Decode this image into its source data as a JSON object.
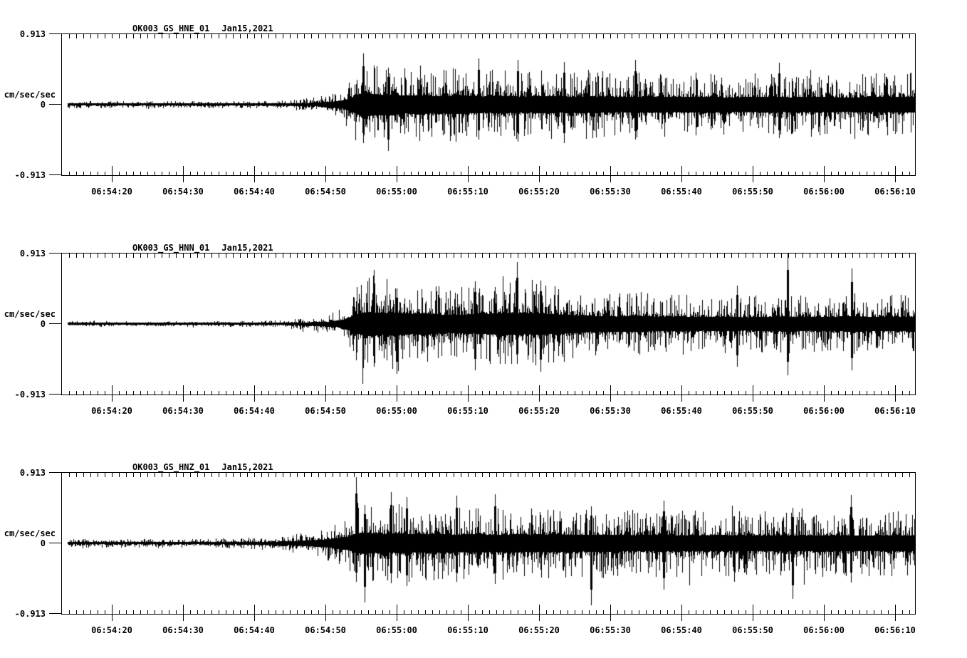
{
  "figure": {
    "background": "#ffffff",
    "ink": "#000000",
    "units_label": "cm/sec/sec"
  },
  "chart_data": [
    {
      "type": "line",
      "subtype": "seismogram",
      "station": "OK003_GS_HNE_01",
      "date": "Jan15,2021",
      "ylabel": "cm/sec/sec",
      "ylim": [
        -0.913,
        0.913
      ],
      "ytick_labels": [
        "0.913",
        "0",
        "-0.913"
      ],
      "x_start": "06:54:13",
      "x_end": "06:56:13",
      "xtick_labels": [
        "06:54:20",
        "06:54:30",
        "06:54:40",
        "06:54:50",
        "06:55:00",
        "06:55:10",
        "06:55:20",
        "06:55:30",
        "06:55:40",
        "06:55:50",
        "06:56:00",
        "06:56:10"
      ],
      "minor_tick_sec": 1,
      "major_tick_sec": 10,
      "first_major_offset_sec": 6.97,
      "span_sec": 119.8,
      "data_start_sec": 0.8,
      "seed": 7,
      "envelope": [
        [
          0,
          0.048
        ],
        [
          20,
          0.048
        ],
        [
          28,
          0.052
        ],
        [
          31,
          0.06
        ],
        [
          34,
          0.085
        ],
        [
          36,
          0.11
        ],
        [
          38,
          0.16
        ],
        [
          39.5,
          0.22
        ],
        [
          40.8,
          0.4
        ],
        [
          41.8,
          0.58
        ],
        [
          42.5,
          0.65
        ],
        [
          43.5,
          0.58
        ],
        [
          45,
          0.52
        ],
        [
          46.5,
          0.56
        ],
        [
          48,
          0.48
        ],
        [
          50,
          0.52
        ],
        [
          53,
          0.45
        ],
        [
          56,
          0.5
        ],
        [
          59,
          0.44
        ],
        [
          62,
          0.47
        ],
        [
          65,
          0.43
        ],
        [
          68,
          0.46
        ],
        [
          71,
          0.42
        ],
        [
          74,
          0.45
        ],
        [
          78,
          0.41
        ],
        [
          82,
          0.44
        ],
        [
          86,
          0.4
        ],
        [
          90,
          0.43
        ],
        [
          94,
          0.39
        ],
        [
          98,
          0.42
        ],
        [
          102,
          0.4
        ],
        [
          106,
          0.42
        ],
        [
          110,
          0.38
        ],
        [
          114,
          0.41
        ],
        [
          119.8,
          0.42
        ]
      ],
      "spikes": [
        [
          42.3,
          0.66,
          0.5
        ],
        [
          45.8,
          0.48,
          0.6
        ],
        [
          58.5,
          0.6,
          0.45
        ],
        [
          64.0,
          0.58,
          0.48
        ],
        [
          70.5,
          0.55,
          0.5
        ],
        [
          80.5,
          0.58,
          0.45
        ],
        [
          100.7,
          0.54,
          0.44
        ]
      ]
    },
    {
      "type": "line",
      "subtype": "seismogram",
      "station": "OK003_GS_HNN_01",
      "date": "Jan15,2021",
      "ylabel": "cm/sec/sec",
      "ylim": [
        -0.913,
        0.913
      ],
      "ytick_labels": [
        "0.913",
        "0",
        "-0.913"
      ],
      "x_start": "06:54:13",
      "x_end": "06:56:13",
      "xtick_labels": [
        "06:54:20",
        "06:54:30",
        "06:54:40",
        "06:54:50",
        "06:55:00",
        "06:55:10",
        "06:55:20",
        "06:55:30",
        "06:55:40",
        "06:55:50",
        "06:56:00",
        "06:56:10"
      ],
      "minor_tick_sec": 1,
      "major_tick_sec": 10,
      "first_major_offset_sec": 6.97,
      "span_sec": 119.8,
      "data_start_sec": 0.8,
      "seed": 1013,
      "envelope": [
        [
          0,
          0.038
        ],
        [
          22,
          0.038
        ],
        [
          28,
          0.045
        ],
        [
          32,
          0.06
        ],
        [
          35,
          0.09
        ],
        [
          37.5,
          0.13
        ],
        [
          39.5,
          0.22
        ],
        [
          40.8,
          0.42
        ],
        [
          42,
          0.6
        ],
        [
          43.5,
          0.66
        ],
        [
          45,
          0.58
        ],
        [
          47,
          0.63
        ],
        [
          49,
          0.54
        ],
        [
          51,
          0.58
        ],
        [
          54,
          0.48
        ],
        [
          57,
          0.52
        ],
        [
          60,
          0.55
        ],
        [
          63,
          0.6
        ],
        [
          65,
          0.56
        ],
        [
          67,
          0.59
        ],
        [
          69,
          0.52
        ],
        [
          72,
          0.47
        ],
        [
          75,
          0.43
        ],
        [
          78,
          0.4
        ],
        [
          81,
          0.43
        ],
        [
          84,
          0.38
        ],
        [
          87,
          0.41
        ],
        [
          90,
          0.37
        ],
        [
          93,
          0.39
        ],
        [
          96,
          0.36
        ],
        [
          99,
          0.38
        ],
        [
          102,
          0.4
        ],
        [
          105,
          0.37
        ],
        [
          108,
          0.39
        ],
        [
          111,
          0.42
        ],
        [
          114,
          0.37
        ],
        [
          119.8,
          0.4
        ]
      ],
      "spikes": [
        [
          43.8,
          0.7,
          0.55
        ],
        [
          47.0,
          0.46,
          0.65
        ],
        [
          58.0,
          0.55,
          0.6
        ],
        [
          63.9,
          0.8,
          0.52
        ],
        [
          67.2,
          0.56,
          0.62
        ],
        [
          94.8,
          0.5,
          0.55
        ],
        [
          101.9,
          0.93,
          0.66
        ],
        [
          110.9,
          0.72,
          0.6
        ]
      ]
    },
    {
      "type": "line",
      "subtype": "seismogram",
      "station": "OK003_GS_HNZ_01",
      "date": "Jan15,2021",
      "ylabel": "cm/sec/sec",
      "ylim": [
        -0.913,
        0.913
      ],
      "ytick_labels": [
        "0.913",
        "0",
        "-0.913"
      ],
      "x_start": "06:54:13",
      "x_end": "06:56:13",
      "xtick_labels": [
        "06:54:20",
        "06:54:30",
        "06:54:40",
        "06:54:50",
        "06:55:00",
        "06:55:10",
        "06:55:20",
        "06:55:30",
        "06:55:40",
        "06:55:50",
        "06:56:00",
        "06:56:10"
      ],
      "minor_tick_sec": 1,
      "major_tick_sec": 10,
      "first_major_offset_sec": 6.97,
      "span_sec": 119.8,
      "data_start_sec": 0.8,
      "seed": 420,
      "envelope": [
        [
          0,
          0.056
        ],
        [
          18,
          0.058
        ],
        [
          24,
          0.065
        ],
        [
          28,
          0.078
        ],
        [
          31,
          0.1
        ],
        [
          34,
          0.14
        ],
        [
          36,
          0.18
        ],
        [
          38,
          0.25
        ],
        [
          40,
          0.35
        ],
        [
          41.3,
          0.52
        ],
        [
          42.5,
          0.58
        ],
        [
          44,
          0.52
        ],
        [
          46,
          0.5
        ],
        [
          47.5,
          0.55
        ],
        [
          49.5,
          0.48
        ],
        [
          52,
          0.52
        ],
        [
          55,
          0.46
        ],
        [
          58,
          0.5
        ],
        [
          61,
          0.46
        ],
        [
          64,
          0.49
        ],
        [
          67,
          0.45
        ],
        [
          70,
          0.48
        ],
        [
          73,
          0.44
        ],
        [
          76,
          0.47
        ],
        [
          80,
          0.43
        ],
        [
          84,
          0.46
        ],
        [
          88,
          0.42
        ],
        [
          92,
          0.45
        ],
        [
          96,
          0.42
        ],
        [
          100,
          0.44
        ],
        [
          104,
          0.42
        ],
        [
          108,
          0.44
        ],
        [
          112,
          0.42
        ],
        [
          116,
          0.44
        ],
        [
          119.8,
          0.43
        ]
      ],
      "spikes": [
        [
          41.3,
          0.86,
          0.5
        ],
        [
          42.5,
          0.5,
          0.76
        ],
        [
          46.2,
          0.66,
          0.52
        ],
        [
          48.4,
          0.6,
          0.55
        ],
        [
          55.4,
          0.62,
          0.5
        ],
        [
          60.8,
          0.64,
          0.52
        ],
        [
          74.3,
          0.48,
          0.8
        ],
        [
          84.5,
          0.55,
          0.6
        ],
        [
          102.6,
          0.46,
          0.72
        ],
        [
          110.8,
          0.63,
          0.5
        ]
      ]
    }
  ]
}
